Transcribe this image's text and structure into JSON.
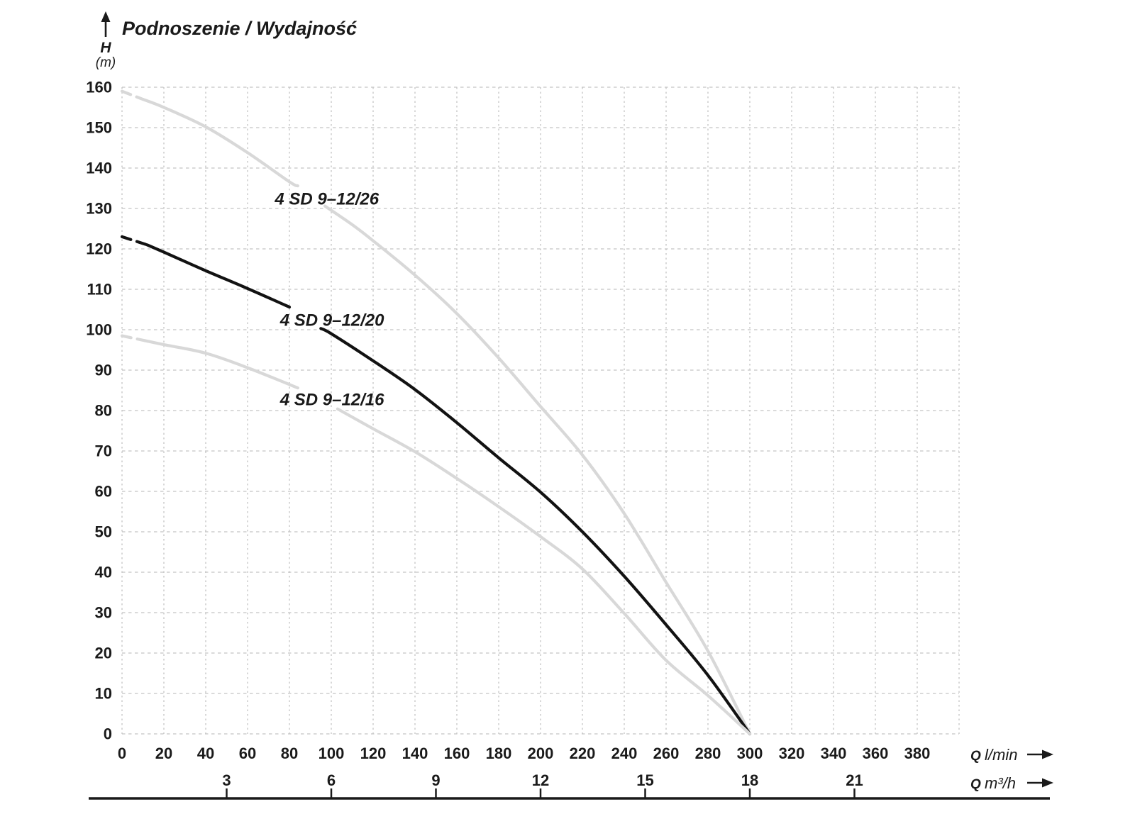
{
  "header": {
    "title": "Podnoszenie / Wydajność",
    "y_symbol": "H",
    "y_unit": "(m)"
  },
  "axis_captions": {
    "q_symbol": "Q",
    "flow_lmin_unit": "l/min",
    "flow_m3h_unit": "m³/h"
  },
  "colors": {
    "black_curve": "#121212",
    "gray_curve": "#d8d8d8",
    "gray_label": "#c9c9c9",
    "grid": "#c4c4c4",
    "text": "#1a1a1a",
    "axis_line": "#1a1a1a"
  },
  "chart_data": {
    "type": "line",
    "title": "Podnoszenie / Wydajność",
    "xlabel": "Q l/min",
    "xlabel2": "Q m³/h",
    "ylabel": "H (m)",
    "grid": true,
    "x_range": [
      0,
      400
    ],
    "x_grid_step": 20,
    "y_range": [
      0,
      160
    ],
    "y_grid_step": 10,
    "x_ticks_lmin": [
      0,
      20,
      40,
      60,
      80,
      100,
      120,
      140,
      160,
      180,
      200,
      220,
      240,
      260,
      280,
      300,
      320,
      340,
      360,
      380
    ],
    "x_ticks_m3h": [
      3,
      6,
      9,
      12,
      15,
      18,
      21
    ],
    "lmin_per_m3h": 16.6667,
    "y_ticks": [
      0,
      10,
      20,
      30,
      40,
      50,
      60,
      70,
      80,
      90,
      100,
      110,
      120,
      130,
      140,
      150,
      160
    ],
    "series": [
      {
        "name": "4 SD 9–12/26",
        "color_key": "gray",
        "label_pos": {
          "q": 73,
          "h": 131
        },
        "dash_lead": [
          [
            0,
            159
          ],
          [
            10,
            157
          ]
        ],
        "solid": [
          [
            [
              10,
              157
            ],
            [
              20,
              155
            ],
            [
              40,
              150.2
            ],
            [
              60,
              143.8
            ],
            [
              80,
              136.6
            ],
            [
              84,
              135.6
            ]
          ],
          [
            [
              97,
              130.6
            ],
            [
              110,
              126
            ],
            [
              120,
              122
            ],
            [
              140,
              113.5
            ],
            [
              160,
              104
            ],
            [
              180,
              93
            ],
            [
              200,
              81
            ],
            [
              220,
              69
            ],
            [
              240,
              54.5
            ],
            [
              260,
              37.5
            ],
            [
              280,
              20.5
            ],
            [
              300,
              0
            ]
          ]
        ]
      },
      {
        "name": "4 SD 9–12/20",
        "color_key": "black",
        "label_pos": {
          "q": 75.5,
          "h": 101
        },
        "dash_lead": [
          [
            0,
            123
          ],
          [
            12,
            121
          ]
        ],
        "solid": [
          [
            [
              12,
              121
            ],
            [
              20,
              119.2
            ],
            [
              40,
              114.6
            ],
            [
              60,
              110.2
            ],
            [
              80,
              105.6
            ]
          ],
          [
            [
              95,
              100.3
            ],
            [
              100,
              99
            ],
            [
              120,
              92.3
            ],
            [
              140,
              85.2
            ],
            [
              160,
              77
            ],
            [
              180,
              68.3
            ],
            [
              200,
              59.8
            ],
            [
              220,
              50
            ],
            [
              240,
              39
            ],
            [
              260,
              27
            ],
            [
              280,
              14.5
            ],
            [
              300,
              0
            ]
          ]
        ]
      },
      {
        "name": "4 SD 9–12/16",
        "color_key": "gray",
        "label_pos": {
          "q": 75.5,
          "h": 81.3
        },
        "dash_lead": [
          [
            0,
            98.5
          ],
          [
            11,
            97.3
          ]
        ],
        "solid": [
          [
            [
              11,
              97.3
            ],
            [
              20,
              96.3
            ],
            [
              40,
              94.2
            ],
            [
              60,
              90.6
            ],
            [
              84,
              85.6
            ]
          ],
          [
            [
              103,
              80.4
            ],
            [
              120,
              75.5
            ],
            [
              140,
              69.8
            ],
            [
              160,
              63.2
            ],
            [
              180,
              56.2
            ],
            [
              200,
              48.8
            ],
            [
              220,
              40.8
            ],
            [
              240,
              29.8
            ],
            [
              260,
              18.2
            ],
            [
              280,
              9.5
            ],
            [
              300,
              0
            ]
          ]
        ]
      }
    ]
  }
}
